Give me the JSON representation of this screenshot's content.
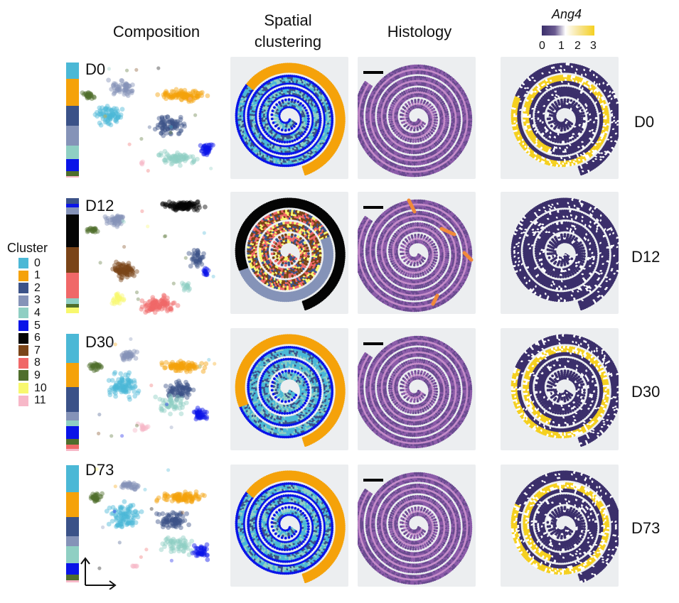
{
  "headers": {
    "composition": "Composition",
    "spatial_line1": "Spatial",
    "spatial_line2": "clustering",
    "histology": "Histology",
    "gene": "Ang4"
  },
  "colorscale": {
    "ticks": [
      "0",
      "1",
      "2",
      "3"
    ],
    "colors": [
      "#3b2f6b",
      "#ffffff",
      "#f5d020"
    ]
  },
  "legend": {
    "title": "Cluster",
    "items": [
      {
        "label": "0",
        "color": "#4bb8d6"
      },
      {
        "label": "1",
        "color": "#f5a20a"
      },
      {
        "label": "2",
        "color": "#3b5288"
      },
      {
        "label": "3",
        "color": "#8593b8"
      },
      {
        "label": "4",
        "color": "#8fcfc3"
      },
      {
        "label": "5",
        "color": "#0a14e8"
      },
      {
        "label": "6",
        "color": "#050505"
      },
      {
        "label": "7",
        "color": "#7a4418"
      },
      {
        "label": "8",
        "color": "#f06868"
      },
      {
        "label": "9",
        "color": "#4f6e2c"
      },
      {
        "label": "10",
        "color": "#f8f86e"
      },
      {
        "label": "11",
        "color": "#f7b8c8"
      }
    ]
  },
  "rows": [
    {
      "day": "D0",
      "composition": [
        {
          "c": 0,
          "p": 0.1
        },
        {
          "c": 1,
          "p": 0.16
        },
        {
          "c": 2,
          "p": 0.12
        },
        {
          "c": 3,
          "p": 0.12
        },
        {
          "c": 4,
          "p": 0.08
        },
        {
          "c": 5,
          "p": 0.07
        },
        {
          "c": 9,
          "p": 0.03
        },
        {
          "c": 11,
          "p": 0.01
        }
      ],
      "ang4": "high"
    },
    {
      "day": "D12",
      "composition": [
        {
          "c": 2,
          "p": 0.03
        },
        {
          "c": 5,
          "p": 0.02
        },
        {
          "c": 3,
          "p": 0.04
        },
        {
          "c": 6,
          "p": 0.18
        },
        {
          "c": 7,
          "p": 0.14
        },
        {
          "c": 8,
          "p": 0.14
        },
        {
          "c": 4,
          "p": 0.03
        },
        {
          "c": 9,
          "p": 0.02
        },
        {
          "c": 10,
          "p": 0.03
        }
      ],
      "ang4": "low"
    },
    {
      "day": "D30",
      "composition": [
        {
          "c": 0,
          "p": 0.14
        },
        {
          "c": 1,
          "p": 0.12
        },
        {
          "c": 2,
          "p": 0.12
        },
        {
          "c": 3,
          "p": 0.04
        },
        {
          "c": 4,
          "p": 0.03
        },
        {
          "c": 5,
          "p": 0.06
        },
        {
          "c": 9,
          "p": 0.03
        },
        {
          "c": 8,
          "p": 0.02
        },
        {
          "c": 11,
          "p": 0.01
        }
      ],
      "ang4": "high"
    },
    {
      "day": "D73",
      "composition": [
        {
          "c": 0,
          "p": 0.14
        },
        {
          "c": 1,
          "p": 0.13
        },
        {
          "c": 2,
          "p": 0.1
        },
        {
          "c": 3,
          "p": 0.05
        },
        {
          "c": 4,
          "p": 0.09
        },
        {
          "c": 5,
          "p": 0.06
        },
        {
          "c": 9,
          "p": 0.03
        },
        {
          "c": 11,
          "p": 0.01
        }
      ],
      "ang4": "high"
    }
  ]
}
